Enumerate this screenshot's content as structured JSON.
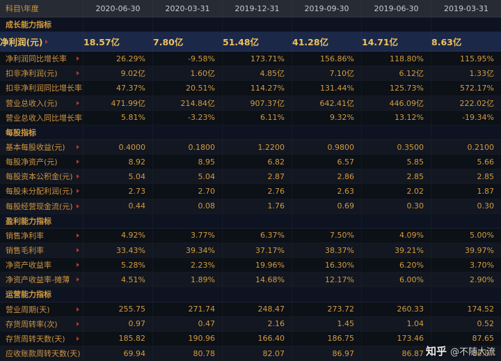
{
  "table": {
    "header": [
      "科目\\年度",
      "2020-06-30",
      "2020-03-31",
      "2019-12-31",
      "2019-09-30",
      "2019-06-30",
      "2019-03-31"
    ],
    "rows": [
      {
        "type": "section",
        "label": "成长能力指标"
      },
      {
        "type": "data",
        "highlight": true,
        "label": "净利润(元)",
        "values": [
          "18.57亿",
          "7.80亿",
          "51.48亿",
          "41.28亿",
          "14.71亿",
          "8.63亿"
        ]
      },
      {
        "type": "data",
        "label": "净利润同比增长率",
        "values": [
          "26.29%",
          "-9.58%",
          "173.71%",
          "156.86%",
          "118.80%",
          "115.95%"
        ]
      },
      {
        "type": "data",
        "label": "扣非净利润(元)",
        "values": [
          "9.02亿",
          "1.60亿",
          "4.85亿",
          "7.10亿",
          "6.12亿",
          "1.33亿"
        ]
      },
      {
        "type": "data",
        "label": "扣非净利润同比增长率",
        "values": [
          "47.37%",
          "20.51%",
          "114.27%",
          "131.44%",
          "125.73%",
          "572.17%"
        ]
      },
      {
        "type": "data",
        "label": "营业总收入(元)",
        "values": [
          "471.99亿",
          "214.84亿",
          "907.37亿",
          "642.41亿",
          "446.09亿",
          "222.02亿"
        ]
      },
      {
        "type": "data",
        "label": "营业总收入同比增长率",
        "values": [
          "5.81%",
          "-3.23%",
          "6.11%",
          "9.32%",
          "13.12%",
          "-19.34%"
        ]
      },
      {
        "type": "section",
        "label": "每股指标"
      },
      {
        "type": "data",
        "label": "基本每股收益(元)",
        "values": [
          "0.4000",
          "0.1800",
          "1.2200",
          "0.9800",
          "0.3500",
          "0.2100"
        ]
      },
      {
        "type": "data",
        "label": "每股净资产(元)",
        "values": [
          "8.92",
          "8.95",
          "6.82",
          "6.57",
          "5.85",
          "5.66"
        ]
      },
      {
        "type": "data",
        "label": "每股资本公积金(元)",
        "values": [
          "5.04",
          "5.04",
          "2.87",
          "2.86",
          "2.85",
          "2.85"
        ]
      },
      {
        "type": "data",
        "label": "每股未分配利润(元)",
        "values": [
          "2.73",
          "2.70",
          "2.76",
          "2.63",
          "2.02",
          "1.87"
        ]
      },
      {
        "type": "data",
        "label": "每股经营现金流(元)",
        "values": [
          "0.44",
          "0.08",
          "1.76",
          "0.69",
          "0.30",
          "0.30"
        ]
      },
      {
        "type": "section",
        "label": "盈利能力指标"
      },
      {
        "type": "data",
        "label": "销售净利率",
        "values": [
          "4.92%",
          "3.77%",
          "6.37%",
          "7.50%",
          "4.09%",
          "5.00%"
        ]
      },
      {
        "type": "data",
        "label": "销售毛利率",
        "values": [
          "33.43%",
          "39.34%",
          "37.17%",
          "38.37%",
          "39.21%",
          "39.97%"
        ]
      },
      {
        "type": "data",
        "label": "净资产收益率",
        "values": [
          "5.28%",
          "2.23%",
          "19.96%",
          "16.30%",
          "6.20%",
          "3.70%"
        ]
      },
      {
        "type": "data",
        "label": "净资产收益率-摊薄",
        "values": [
          "4.51%",
          "1.89%",
          "14.68%",
          "12.17%",
          "6.00%",
          "2.90%"
        ]
      },
      {
        "type": "section",
        "label": "运营能力指标"
      },
      {
        "type": "data",
        "label": "营业周期(天)",
        "values": [
          "255.75",
          "271.74",
          "248.47",
          "273.72",
          "260.33",
          "174.52"
        ]
      },
      {
        "type": "data",
        "label": "存货周转率(次)",
        "values": [
          "0.97",
          "0.47",
          "2.16",
          "1.45",
          "1.04",
          "0.52"
        ]
      },
      {
        "type": "data",
        "label": "存货周转天数(天)",
        "values": [
          "185.82",
          "190.96",
          "166.40",
          "186.75",
          "173.46",
          "87.65"
        ]
      },
      {
        "type": "data",
        "label": "应收账款周转天数(天)",
        "values": [
          "69.94",
          "80.78",
          "82.07",
          "86.97",
          "86.87",
          "86.87"
        ]
      }
    ]
  },
  "watermark": {
    "brand": "知乎",
    "handle": "@不随大流"
  },
  "colors": {
    "background": "#0a0d13",
    "header_bg": "#272b33",
    "highlight_bg": "#1b2848",
    "value_gold": "#d59c3e",
    "highlight_gold": "#f0c25e",
    "accent_red": "#b5382c"
  }
}
